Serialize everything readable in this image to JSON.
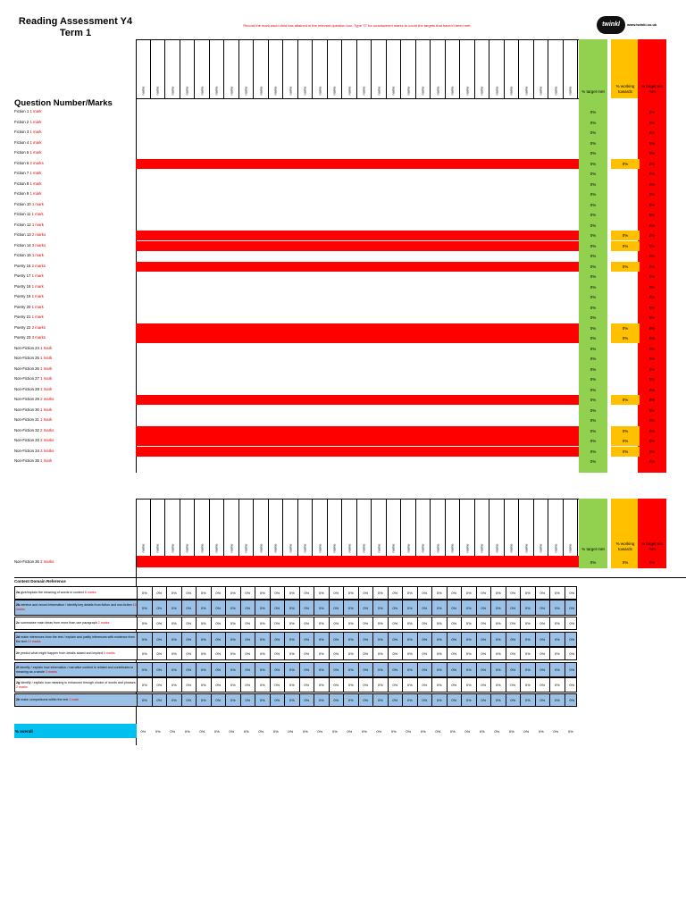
{
  "title_line1": "Reading Assessment Y4",
  "title_line2": "Term 1",
  "instruction": "Record the mark each child has attained in the relevant question box. Type \"0\" for unanswered marks to count the targets that haven't been met.",
  "logo": {
    "text": "twinkl",
    "url": "www.twinkl.co.uk"
  },
  "name_placeholder": "name",
  "name_column_count": 30,
  "pct_headers": {
    "target_met": "% target met",
    "working_towards": "% working towards",
    "target_not_met": "% target not met"
  },
  "colors": {
    "green": "#92d050",
    "amber": "#ffc000",
    "red": "#ff0000",
    "blue": "#9bc2e6",
    "cyan": "#00c0f0"
  },
  "question_heading": "Question Number/Marks",
  "questions": [
    {
      "label": "Fiction 1",
      "marks": "1 mark",
      "multi": false
    },
    {
      "label": "Fiction 2",
      "marks": "1 mark",
      "multi": false
    },
    {
      "label": "Fiction 3",
      "marks": "1 mark",
      "multi": false
    },
    {
      "label": "Fiction 4",
      "marks": "1 mark",
      "multi": false
    },
    {
      "label": "Fiction 5",
      "marks": "1 mark",
      "multi": false
    },
    {
      "label": "Fiction 6",
      "marks": "2 marks",
      "multi": true
    },
    {
      "label": "Fiction 7",
      "marks": "1 mark",
      "multi": false
    },
    {
      "label": "Fiction 8",
      "marks": "1 mark",
      "multi": false
    },
    {
      "label": "Fiction 9",
      "marks": "1 mark",
      "multi": false
    },
    {
      "label": "Fiction 10",
      "marks": "1 mark",
      "multi": false
    },
    {
      "label": "Fiction 11",
      "marks": "1 mark",
      "multi": false
    },
    {
      "label": "Fiction 12",
      "marks": "1 mark",
      "multi": false
    },
    {
      "label": "Fiction 13",
      "marks": "2 marks",
      "multi": true
    },
    {
      "label": "Fiction 14",
      "marks": "3 marks",
      "multi": true
    },
    {
      "label": "Fiction 15",
      "marks": "1 mark",
      "multi": false
    },
    {
      "label": "Poetry 16",
      "marks": "2 marks",
      "multi": true
    },
    {
      "label": "Poetry 17",
      "marks": "1 mark",
      "multi": false
    },
    {
      "label": "Poetry 18",
      "marks": "1 mark",
      "multi": false
    },
    {
      "label": "Poetry 19",
      "marks": "1 mark",
      "multi": false
    },
    {
      "label": "Poetry 20",
      "marks": "1 mark",
      "multi": false
    },
    {
      "label": "Poetry 21",
      "marks": "1 mark",
      "multi": false
    },
    {
      "label": "Poetry 22",
      "marks": "2 marks",
      "multi": true
    },
    {
      "label": "Poetry 23",
      "marks": "3 marks",
      "multi": true
    },
    {
      "label": "Non-Fiction 24",
      "marks": "1 mark",
      "multi": false
    },
    {
      "label": "Non-Fiction 25",
      "marks": "1 mark",
      "multi": false
    },
    {
      "label": "Non-Fiction 26",
      "marks": "1 mark",
      "multi": false
    },
    {
      "label": "Non-Fiction 27",
      "marks": "1 mark",
      "multi": false
    },
    {
      "label": "Non-Fiction 28",
      "marks": "1 mark",
      "multi": false
    },
    {
      "label": "Non-Fiction 29",
      "marks": "2 marks",
      "multi": true
    },
    {
      "label": "Non-Fiction 30",
      "marks": "1 mark",
      "multi": false
    },
    {
      "label": "Non-Fiction 31",
      "marks": "1 mark",
      "multi": false
    },
    {
      "label": "Non-Fiction 32",
      "marks": "2 marks",
      "multi": true
    },
    {
      "label": "Non-Fiction 33",
      "marks": "2 marks",
      "multi": true
    },
    {
      "label": "Non-Fiction 34",
      "marks": "3 marks",
      "multi": true
    },
    {
      "label": "Non-Fiction 35",
      "marks": "1 mark",
      "multi": false
    }
  ],
  "page2_question": {
    "label": "Non-Fiction 36",
    "marks": "2 marks",
    "multi": true
  },
  "pct_value": "0%",
  "content_domain_heading": "Content Domain Reference",
  "content_domains": [
    {
      "code": "2a",
      "text": "give/explain the meaning of words in context",
      "marks": "8 marks",
      "shaded": false
    },
    {
      "code": "2b",
      "text": "retrieve and record information / identify key details from fiction and non-fiction",
      "marks": "18 marks",
      "shaded": true
    },
    {
      "code": "2c",
      "text": "summarise main ideas from more than one paragraph",
      "marks": "2 marks",
      "shaded": false
    },
    {
      "code": "2d",
      "text": "make inferences from the text / explain and justify inferences with evidence from the text",
      "marks": "10 marks",
      "shaded": true
    },
    {
      "code": "2e",
      "text": "predict what might happen from details stated and implied",
      "marks": "0 marks",
      "shaded": false
    },
    {
      "code": "2f",
      "text": "identify / explain how information / narrative content is related and contributes to meaning as a whole",
      "marks": "3 marks",
      "shaded": true
    },
    {
      "code": "2g",
      "text": "identify / explain how meaning is enhanced through choice of words and phrases",
      "marks": "2 marks",
      "shaded": false
    },
    {
      "code": "2h",
      "text": "make comparisons within the text",
      "marks": "1 mark",
      "shaded": true
    }
  ],
  "overall_label": "% overall"
}
